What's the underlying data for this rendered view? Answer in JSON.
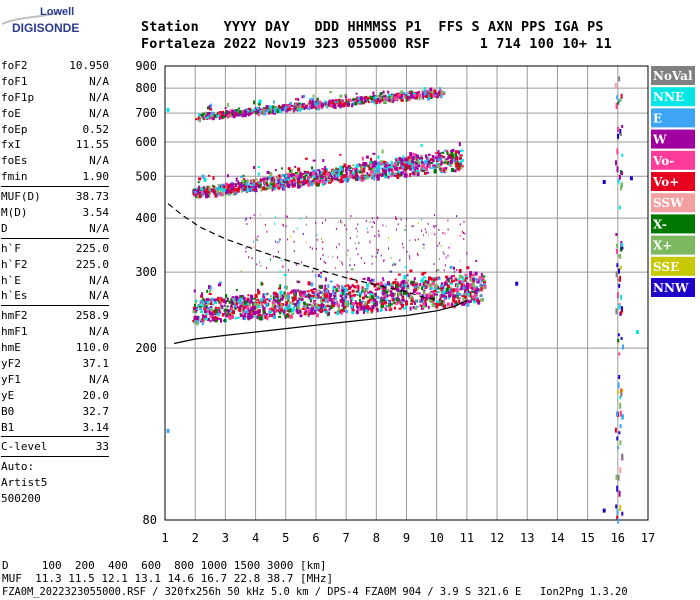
{
  "logo": {
    "line1": "Lowell",
    "line2": "DIGISONDE"
  },
  "header": {
    "line1": "Station   YYYY DAY   DDD HHMMSS P1  FFS S AXN PPS IGA PS",
    "line2": "Fortaleza 2022 Nov19 323 055000 RSF      1 714 100 10+ 11"
  },
  "params": {
    "group1": [
      {
        "name": "foF2",
        "value": "10.950"
      },
      {
        "name": "foF1",
        "value": "N/A"
      },
      {
        "name": "foF1p",
        "value": "N/A"
      },
      {
        "name": "foE",
        "value": "N/A"
      },
      {
        "name": "foEp",
        "value": "0.52"
      },
      {
        "name": "fxI",
        "value": "11.55"
      },
      {
        "name": "foEs",
        "value": "N/A"
      },
      {
        "name": "fmin",
        "value": "1.90"
      }
    ],
    "group2": [
      {
        "name": "MUF(D)",
        "value": "38.73"
      },
      {
        "name": "M(D)",
        "value": "3.54"
      },
      {
        "name": "D",
        "value": "N/A"
      }
    ],
    "group3": [
      {
        "name": "h`F",
        "value": "225.0"
      },
      {
        "name": "h`F2",
        "value": "225.0"
      },
      {
        "name": "h`E",
        "value": "N/A"
      },
      {
        "name": "h`Es",
        "value": "N/A"
      }
    ],
    "group4": [
      {
        "name": "hmF2",
        "value": "258.9"
      },
      {
        "name": "hmF1",
        "value": "N/A"
      },
      {
        "name": "hmE",
        "value": "110.0"
      },
      {
        "name": "yF2",
        "value": "37.1"
      },
      {
        "name": "yF1",
        "value": "N/A"
      },
      {
        "name": "yE",
        "value": "20.0"
      },
      {
        "name": "B0",
        "value": "32.7"
      },
      {
        "name": "B1",
        "value": "3.14"
      }
    ],
    "group5": [
      {
        "name": "C-level",
        "value": "33"
      }
    ],
    "auto": [
      "Auto:",
      "Artist5",
      "500200"
    ]
  },
  "footer": {
    "line1": "D     100  200  400  600  800 1000 1500 3000 [km]",
    "line2": "MUF  11.3 11.5 12.1 13.1 14.6 16.7 22.8 38.7 [MHz]",
    "line3": "FZA0M_2022323055000.RSF / 320fx256h 50 kHz 5.0 km / DPS-4 FZA0M 904 / 3.9 S 321.6 E   Ion2Png 1.3.20"
  },
  "chart_data": {
    "type": "scatter",
    "xlim": [
      1,
      17
    ],
    "ylim": [
      80,
      900
    ],
    "yscale": "log",
    "x_ticks": [
      1,
      2,
      3,
      4,
      5,
      6,
      7,
      8,
      9,
      10,
      11,
      12,
      13,
      14,
      15,
      16,
      17
    ],
    "y_ticks": [
      80,
      200,
      300,
      400,
      500,
      600,
      700,
      800,
      900
    ],
    "y_tick_labels": [
      "80",
      "200",
      "300",
      "400",
      "500",
      "600",
      "700",
      "800",
      "900"
    ],
    "grid": true,
    "legend_position": "right",
    "legend": [
      {
        "label": "NoVal",
        "color": "#808080"
      },
      {
        "label": "NNE",
        "color": "#00e6e6"
      },
      {
        "label": "E",
        "color": "#3da5f4"
      },
      {
        "label": "W",
        "color": "#a000a0"
      },
      {
        "label": "Vo-",
        "color": "#ff3c9a"
      },
      {
        "label": "Vo+",
        "color": "#e6001e"
      },
      {
        "label": "SSW",
        "color": "#f4a0a0"
      },
      {
        "label": "X-",
        "color": "#007800"
      },
      {
        "label": "X+",
        "color": "#7cb860"
      },
      {
        "label": "SSE",
        "color": "#c8c800"
      },
      {
        "label": "NNW",
        "color": "#1e00c8"
      }
    ],
    "traces": [
      {
        "name": "F2 first-hop echoes",
        "x_range": [
          1.9,
          11.6
        ],
        "h_start": [
          230,
          260
        ],
        "h_end": [
          255,
          300
        ]
      },
      {
        "name": "F2 second-hop echoes",
        "x_range": [
          1.9,
          10.8
        ],
        "h_start": [
          450,
          470
        ],
        "h_end": [
          520,
          580
        ]
      },
      {
        "name": "F2 third-hop echoes",
        "x_range": [
          2.0,
          10.2
        ],
        "h_start": [
          680,
          700
        ],
        "h_end": [
          770,
          800
        ]
      }
    ],
    "profile_line": {
      "x": [
        1.3,
        2,
        3,
        4,
        5,
        6,
        7,
        8,
        9,
        10,
        10.6,
        11.0
      ],
      "h": [
        205,
        210,
        214,
        218,
        222,
        226,
        230,
        234,
        238,
        244,
        250,
        258
      ]
    },
    "dashed_line": {
      "x": [
        1.1,
        1.6,
        2.2,
        3,
        4,
        5,
        6,
        7,
        8,
        9,
        9.6,
        10.1
      ],
      "h": [
        432,
        405,
        380,
        358,
        338,
        320,
        305,
        291,
        280,
        270,
        262,
        258
      ]
    },
    "noise_column_x": 16.0
  }
}
